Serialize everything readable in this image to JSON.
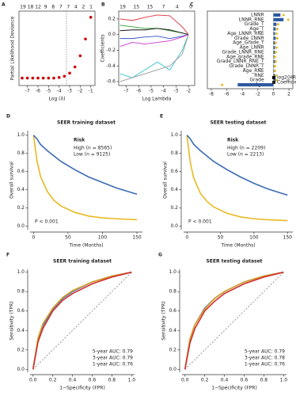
{
  "chart_data": [
    {
      "type": "scatter",
      "label": "A",
      "xlabel": "Log (λ)",
      "ylabel": "Partial Likelihood Deviance",
      "top_labels": [
        19,
        18,
        12,
        9,
        8,
        7,
        7,
        4,
        2,
        1
      ],
      "x": [
        -7.5,
        -7,
        -6.5,
        -6,
        -5.5,
        -5,
        -4.5,
        -4,
        -3.5,
        -3,
        -2.5,
        -2,
        -1.5,
        -1
      ],
      "values": [
        7.62,
        7.62,
        7.62,
        7.62,
        7.62,
        7.62,
        7.62,
        7.63,
        7.65,
        7.7,
        7.8,
        7.98,
        8.25,
        8.6
      ],
      "color": "#cc0000",
      "xlim": [
        -7.8,
        -0.6
      ],
      "xticks": [
        -7,
        -6,
        -5,
        -4,
        -3,
        -2,
        -1
      ],
      "ylim": [
        7.5,
        8.7
      ],
      "vlines": [
        -3.3
      ]
    },
    {
      "type": "line",
      "label": "B",
      "xlabel": "Log Lambda",
      "ylabel": "Coefficients",
      "top_labels": [
        19,
        15,
        15,
        7,
        4,
        0
      ],
      "x": [
        -7.5,
        -6.5,
        -5.5,
        -4.5,
        -3.5,
        -2.5,
        -2
      ],
      "series": [
        {
          "color": "#2ca02c",
          "values": [
            0.12,
            0.1,
            0.08,
            0.08,
            0.05,
            0.02,
            0
          ]
        },
        {
          "color": "#e0303a",
          "values": [
            0.2,
            0.18,
            0.22,
            0.25,
            0.24,
            0.1,
            0
          ]
        },
        {
          "color": "#111111",
          "values": [
            0.05,
            0.06,
            0.06,
            0.08,
            0.06,
            0.02,
            0
          ]
        },
        {
          "color": "#3050c8",
          "values": [
            -0.05,
            -0.05,
            -0.03,
            -0.02,
            -0.05,
            -0.02,
            0
          ]
        },
        {
          "color": "#cc33cc",
          "values": [
            -0.15,
            -0.1,
            -0.12,
            -0.1,
            -0.08,
            -0.03,
            0
          ]
        },
        {
          "color": "#33c4d4",
          "values": [
            -0.5,
            -0.55,
            -0.45,
            -0.35,
            -0.45,
            -0.2,
            0
          ]
        },
        {
          "color": "#999999",
          "values": [
            -0.6,
            -0.55,
            -0.5,
            -0.45,
            -0.4,
            -0.25,
            0
          ]
        }
      ],
      "xlim": [
        -7.6,
        -1.5
      ],
      "xticks": [
        -7,
        -6,
        -5,
        -4,
        -3,
        -2
      ],
      "ylim": [
        -0.65,
        0.3
      ],
      "yticks": [
        -0.6,
        -0.4,
        -0.2,
        {
          "value": 0,
          "label": "0.0"
        },
        0.2
      ]
    },
    {
      "type": "bar",
      "label": "C",
      "categories": [
        "LNNR",
        "LNNR_RNE",
        "Grade_T",
        "Age_T",
        "Age_LNNR_RNE",
        "Grade_LNNR",
        "Age_Grade_T",
        "Age_LNNR",
        "Grade_LNNR_RNE",
        "Age_grade_RNE",
        "Grade_LNNR_RNE_T",
        "Grade_LNNR_T",
        "Age_RNE",
        "RNE",
        "Grade",
        "Age"
      ],
      "series": [
        {
          "name": "log2(HR)",
          "color": "#e6b820",
          "values": [
            1.3,
            1.9,
            0.6,
            0.5,
            0.4,
            0.5,
            0.3,
            0.4,
            0.3,
            0.2,
            0.3,
            0.2,
            0.2,
            0.3,
            0.4,
            -6.6
          ]
        },
        {
          "name": "Coefficient",
          "color": "#2c5aa0",
          "values": [
            0.9,
            1.3,
            0.4,
            0.3,
            0.2,
            0.3,
            0.2,
            0.2,
            0.2,
            0.1,
            0.2,
            0.1,
            0.1,
            0.2,
            0.3,
            -4.6
          ]
        }
      ],
      "xlim": [
        -8.5,
        2.5
      ],
      "xticks": [
        -8,
        -6,
        -4,
        -2,
        0,
        2
      ]
    },
    {
      "type": "line",
      "label": "D",
      "title": "SEER training dataset",
      "xlabel": "Time (Months)",
      "ylabel": "Overall survival",
      "legend_title": "Risk",
      "annotation": "P < 0.001",
      "x": [
        0,
        5,
        10,
        20,
        30,
        40,
        60,
        80,
        100,
        120,
        150
      ],
      "series": [
        {
          "name": "High (n = 8565)",
          "color": "#e8b923",
          "values": [
            1.0,
            0.72,
            0.55,
            0.38,
            0.28,
            0.22,
            0.15,
            0.11,
            0.09,
            0.08,
            0.07
          ]
        },
        {
          "name": "Low (n = 9125)",
          "color": "#3a6bb5",
          "values": [
            1.0,
            0.96,
            0.9,
            0.83,
            0.77,
            0.71,
            0.62,
            0.54,
            0.48,
            0.42,
            0.35
          ]
        }
      ],
      "xlim": [
        -5,
        158
      ],
      "xticks": [
        0,
        50,
        100,
        150
      ],
      "ylim": [
        -0.04,
        1.05
      ],
      "yticks": [
        {
          "value": 0,
          "label": "0.0"
        },
        0.2,
        0.4,
        0.6,
        0.8,
        {
          "value": 1,
          "label": "1.0"
        }
      ]
    },
    {
      "type": "line",
      "label": "E",
      "title": "SEER testing dataset",
      "xlabel": "Time (Months)",
      "ylabel": "Overall survival",
      "legend_title": "Risk",
      "annotation": "P < 0.001",
      "x": [
        0,
        5,
        10,
        20,
        30,
        40,
        60,
        80,
        100,
        120,
        150
      ],
      "series": [
        {
          "name": "High (n = 2209)",
          "color": "#e8b923",
          "values": [
            1.0,
            0.7,
            0.53,
            0.36,
            0.27,
            0.21,
            0.14,
            0.1,
            0.08,
            0.07,
            0.06
          ]
        },
        {
          "name": "Low (n = 2213)",
          "color": "#3a6bb5",
          "values": [
            1.0,
            0.96,
            0.9,
            0.83,
            0.77,
            0.71,
            0.62,
            0.54,
            0.47,
            0.41,
            0.34
          ]
        }
      ],
      "xlim": [
        -5,
        158
      ],
      "xticks": [
        0,
        50,
        100,
        150
      ],
      "ylim": [
        -0.04,
        1.05
      ],
      "yticks": [
        {
          "value": 0,
          "label": "0.0"
        },
        0.2,
        0.4,
        0.6,
        0.8,
        {
          "value": 1,
          "label": "1.0"
        }
      ]
    },
    {
      "type": "line",
      "label": "F",
      "title": "SEER training dataset",
      "xlabel": "1−Specificity (FPR)",
      "ylabel": "Sensitivity (TPR)",
      "diagonal": true,
      "x": [
        0,
        0.05,
        0.1,
        0.2,
        0.3,
        0.4,
        0.6,
        0.8,
        1.0
      ],
      "series": [
        {
          "name": "5-year AUC: 0.79",
          "color": "#3a7bc8",
          "values": [
            0,
            0.3,
            0.45,
            0.62,
            0.73,
            0.8,
            0.9,
            0.96,
            1
          ]
        },
        {
          "name": "3-year AUC: 0.79",
          "color": "#d9a020",
          "values": [
            0,
            0.32,
            0.47,
            0.63,
            0.74,
            0.81,
            0.9,
            0.96,
            1
          ]
        },
        {
          "name": "1-year AUC: 0.76",
          "color": "#d03030",
          "values": [
            0,
            0.28,
            0.42,
            0.6,
            0.71,
            0.78,
            0.88,
            0.95,
            1
          ]
        }
      ],
      "xlim": [
        -0.03,
        1.03
      ],
      "xticks": [
        {
          "value": 0,
          "label": "0.0"
        },
        0.2,
        0.4,
        0.6,
        0.8,
        {
          "value": 1,
          "label": "1.0"
        }
      ],
      "ylim": [
        -0.03,
        1.03
      ],
      "yticks": [
        {
          "value": 0,
          "label": "0.0"
        },
        0.2,
        0.4,
        0.6,
        0.8,
        {
          "value": 1,
          "label": "1.0"
        }
      ]
    },
    {
      "type": "line",
      "label": "G",
      "title": "SEER testing dataset",
      "xlabel": "1−Specificity (FPR)",
      "ylabel": "Sensitivity (TPR)",
      "diagonal": true,
      "x": [
        0,
        0.05,
        0.1,
        0.2,
        0.3,
        0.4,
        0.6,
        0.8,
        1.0
      ],
      "series": [
        {
          "name": "5-year AUC: 0.79",
          "color": "#3a7bc8",
          "values": [
            0,
            0.31,
            0.46,
            0.63,
            0.73,
            0.8,
            0.9,
            0.96,
            1
          ]
        },
        {
          "name": "3-year AUC: 0.78",
          "color": "#d9a020",
          "values": [
            0,
            0.31,
            0.46,
            0.62,
            0.73,
            0.8,
            0.9,
            0.96,
            1
          ]
        },
        {
          "name": "1-year AUC: 0.76",
          "color": "#d03030",
          "values": [
            0,
            0.27,
            0.42,
            0.6,
            0.7,
            0.78,
            0.88,
            0.95,
            1
          ]
        }
      ],
      "xlim": [
        -0.03,
        1.03
      ],
      "xticks": [
        {
          "value": 0,
          "label": "0.0"
        },
        0.2,
        0.4,
        0.6,
        0.8,
        {
          "value": 1,
          "label": "1.0"
        }
      ],
      "ylim": [
        -0.03,
        1.03
      ],
      "yticks": [
        {
          "value": 0,
          "label": "0.0"
        },
        0.2,
        0.4,
        0.6,
        0.8,
        {
          "value": 1,
          "label": "1.0"
        }
      ]
    }
  ]
}
